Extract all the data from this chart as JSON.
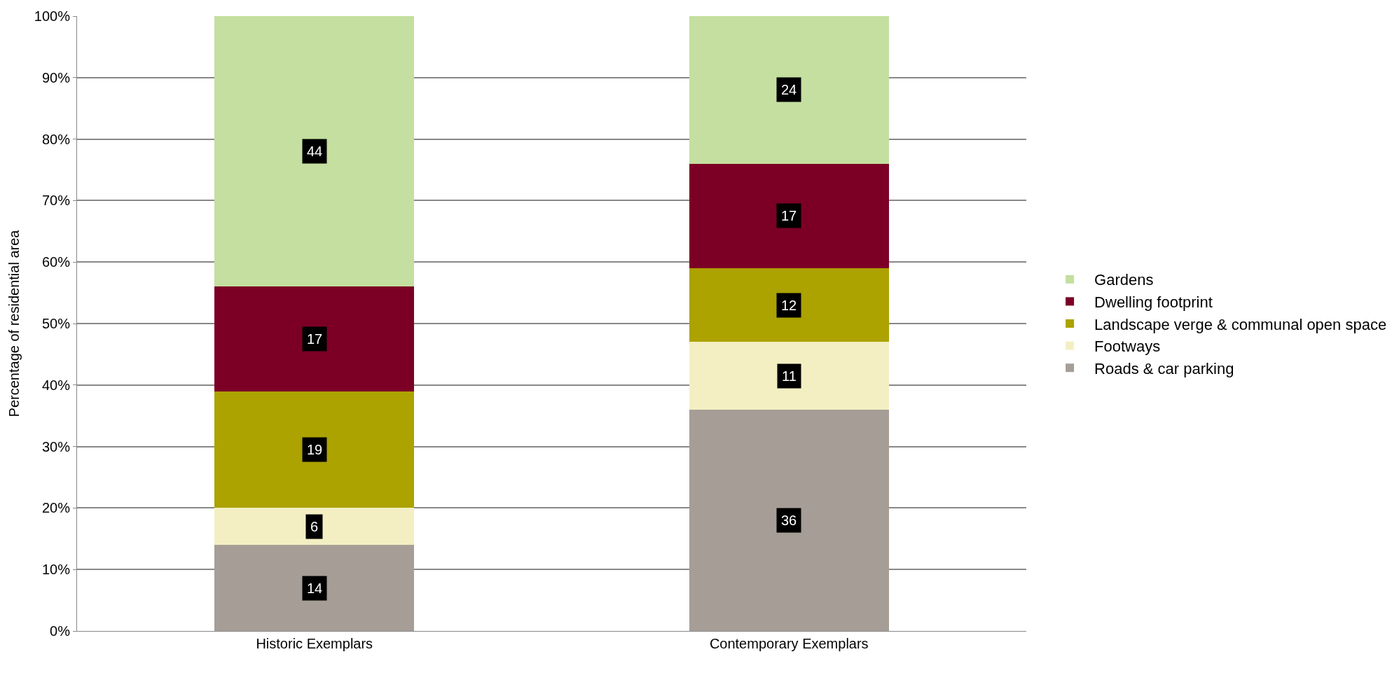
{
  "chart_data": {
    "type": "bar",
    "stacked": true,
    "ylabel": "Percentage of residential area",
    "categories": [
      "Historic Exemplars",
      "Contemporary Exemplars"
    ],
    "series": [
      {
        "name": "Roads & car parking",
        "color": "#a69e96",
        "values": [
          14,
          36
        ]
      },
      {
        "name": "Footways",
        "color": "#f3efc3",
        "values": [
          6,
          11
        ]
      },
      {
        "name": "Landscape verge & communal open space",
        "color": "#aca200",
        "values": [
          19,
          12
        ]
      },
      {
        "name": "Dwelling footprint",
        "color": "#7c0026",
        "values": [
          17,
          17
        ]
      },
      {
        "name": "Gardens",
        "color": "#c4df9f",
        "values": [
          44,
          24
        ]
      }
    ],
    "ylim": [
      0,
      100
    ],
    "yticks": [
      {
        "value": 0,
        "label": "0%"
      },
      {
        "value": 10,
        "label": "10%"
      },
      {
        "value": 20,
        "label": "20%"
      },
      {
        "value": 30,
        "label": "30%"
      },
      {
        "value": 40,
        "label": "40%"
      },
      {
        "value": 50,
        "label": "50%"
      },
      {
        "value": 60,
        "label": "60%"
      },
      {
        "value": 70,
        "label": "70%"
      },
      {
        "value": 80,
        "label": "80%"
      },
      {
        "value": 90,
        "label": "90%"
      },
      {
        "value": 100,
        "label": "100%"
      }
    ],
    "grid": "y",
    "legend": "right",
    "data_labels": true
  }
}
